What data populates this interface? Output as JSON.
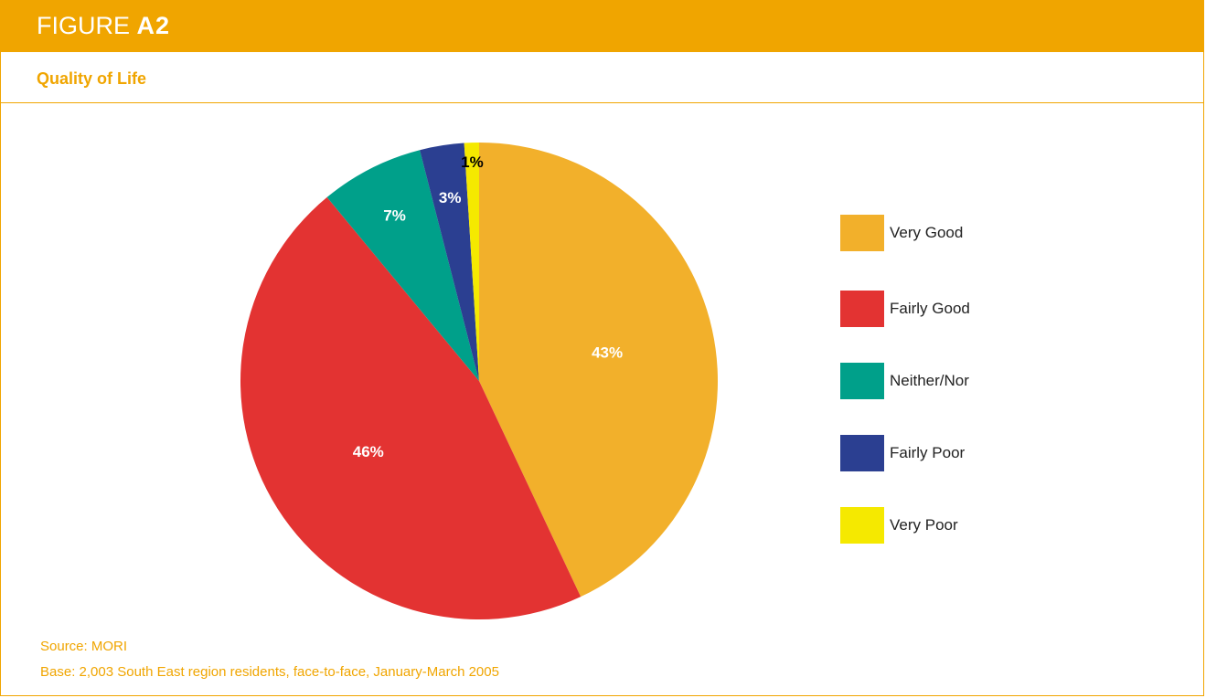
{
  "figure": {
    "prefix": "FIGURE",
    "number": "A2"
  },
  "subtitle": "Quality of Life",
  "chart_data": {
    "type": "pie",
    "categories": [
      "Very Good",
      "Fairly Good",
      "Neither/Nor",
      "Fairly Poor",
      "Very Poor"
    ],
    "values": [
      43,
      46,
      7,
      3,
      1
    ],
    "labels": [
      "43%",
      "46%",
      "7%",
      "3%",
      "1%"
    ],
    "colors": [
      "#f2b02b",
      "#e33332",
      "#00a08a",
      "#2b3f91",
      "#f5e900"
    ],
    "label_colors": [
      "#ffffff",
      "#ffffff",
      "#ffffff",
      "#ffffff",
      "#000000"
    ],
    "start": "12 o'clock, clockwise",
    "legend_position": "right"
  },
  "footer": {
    "source": "Source: MORI",
    "base": "Base: 2,003 South East region residents, face-to-face, January-March 2005"
  }
}
